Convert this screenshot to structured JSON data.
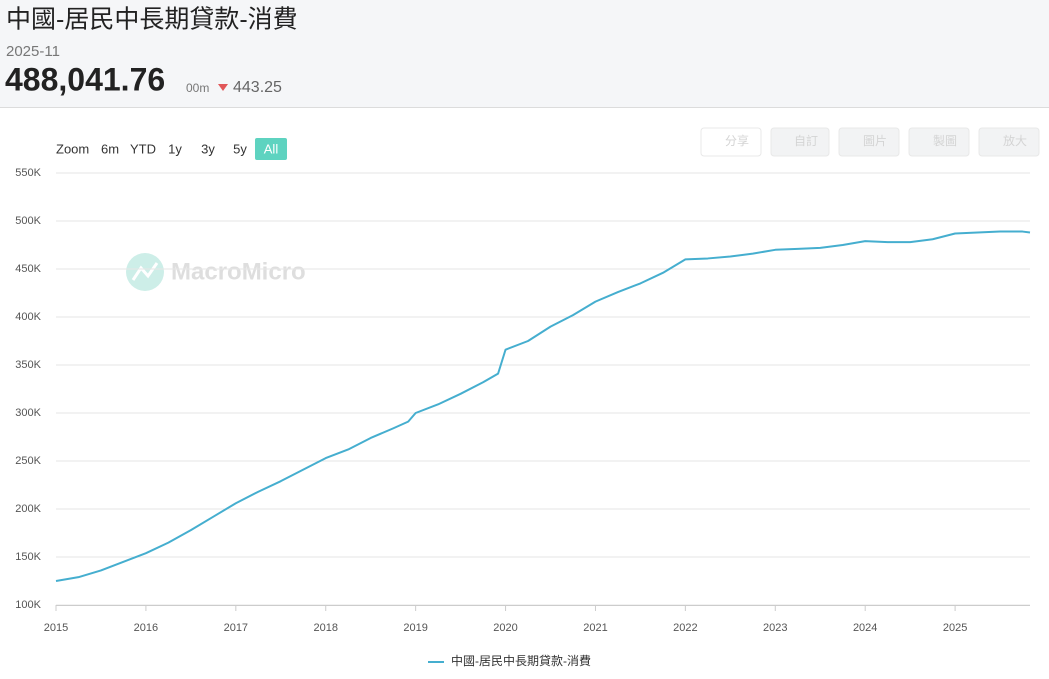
{
  "header": {
    "title": "中國-居民中長期貸款-消費",
    "date": "2025-11",
    "value": "488,041.76",
    "unit": "00m",
    "change": "443.25"
  },
  "toolbar": {
    "zoom_label": "Zoom",
    "ranges": [
      "6m",
      "YTD",
      "1y",
      "3y",
      "5y",
      "All"
    ],
    "selected_range": "All",
    "actions": [
      "分享",
      "自訂",
      "圖片",
      "製圖",
      "放大"
    ]
  },
  "watermark": "MacroMicro",
  "chart_data": {
    "type": "line",
    "x": [
      2015,
      2015.25,
      2015.5,
      2015.75,
      2016,
      2016.25,
      2016.5,
      2016.75,
      2017,
      2017.25,
      2017.5,
      2017.75,
      2018,
      2018.25,
      2018.5,
      2018.75,
      2018.917,
      2019,
      2019.25,
      2019.5,
      2019.75,
      2019.917,
      2020,
      2020.25,
      2020.5,
      2020.75,
      2021,
      2021.25,
      2021.5,
      2021.75,
      2022,
      2022.25,
      2022.5,
      2022.75,
      2023,
      2023.25,
      2023.5,
      2023.75,
      2024,
      2024.25,
      2024.5,
      2024.75,
      2025,
      2025.25,
      2025.5,
      2025.75,
      2025.833
    ],
    "series": [
      {
        "name": "中國-居民中長期貸款-消費",
        "color": "#45aecf",
        "values": [
          125000,
          129000,
          136000,
          145000,
          154000,
          165000,
          178000,
          192000,
          206000,
          218000,
          229000,
          241000,
          253000,
          262000,
          274000,
          284000,
          291000,
          300000,
          309000,
          320000,
          332000,
          341000,
          366000,
          375000,
          390000,
          402000,
          416000,
          426000,
          435000,
          446000,
          460000,
          461000,
          463000,
          466000,
          470000,
          471000,
          472000,
          475000,
          479000,
          478000,
          478000,
          481000,
          487000,
          488000,
          489000,
          489000,
          488041.76
        ]
      }
    ],
    "xlim": [
      2015,
      2025.833
    ],
    "xticks": [
      2015,
      2016,
      2017,
      2018,
      2019,
      2020,
      2021,
      2022,
      2023,
      2024,
      2025
    ],
    "ylim": [
      100000,
      550000
    ],
    "yticks": [
      {
        "value": 100000,
        "label": "100K"
      },
      {
        "value": 150000,
        "label": "150K"
      },
      {
        "value": 200000,
        "label": "200K"
      },
      {
        "value": 250000,
        "label": "250K"
      },
      {
        "value": 300000,
        "label": "300K"
      },
      {
        "value": 350000,
        "label": "350K"
      },
      {
        "value": 400000,
        "label": "400K"
      },
      {
        "value": 450000,
        "label": "450K"
      },
      {
        "value": 500000,
        "label": "500K"
      },
      {
        "value": 550000,
        "label": "550K"
      }
    ],
    "grid": true,
    "legend": "bottom"
  }
}
